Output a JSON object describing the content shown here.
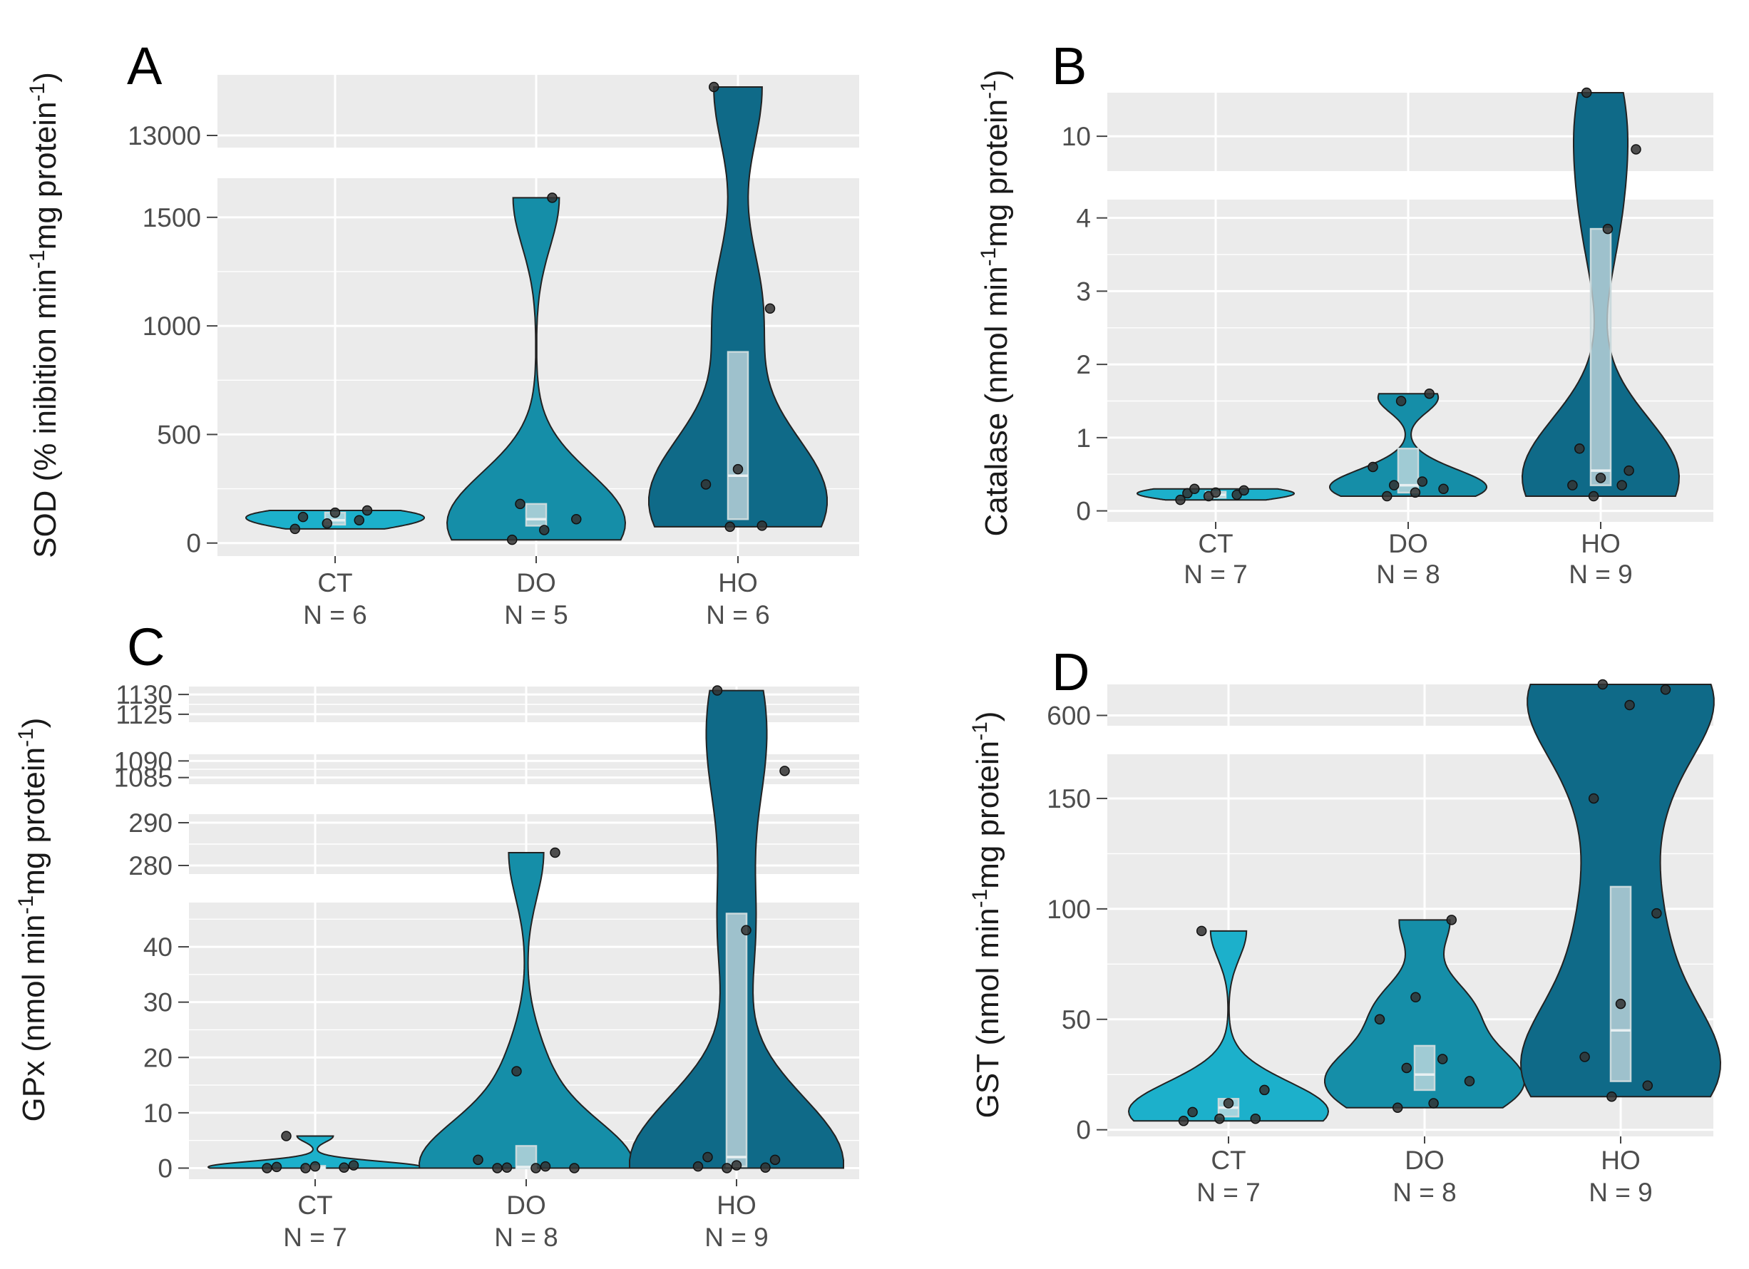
{
  "colors": {
    "panel_bg": "#ebebeb",
    "violin_ct": "#1cb0cb",
    "violin_do": "#158ea8",
    "violin_ho": "#0f6a88"
  },
  "chart_data": [
    {
      "panel": "A",
      "type": "violin",
      "ylabel_main": "SOD (% inibition min",
      "ylabel_mid": "mg protein",
      "ylabel_close": ")",
      "ylabel_sup": "-1",
      "categories": [
        "CT",
        "DO",
        "HO"
      ],
      "counts": [
        "N = 6",
        "N = 5",
        "N = 6"
      ],
      "axis_breaks": [
        {
          "ylim": [
            -60,
            1680
          ],
          "ticks": [
            0,
            500,
            1000,
            1500
          ],
          "tick_labels": [
            "0",
            "500",
            "1000",
            "1500"
          ]
        },
        {
          "ylim": [
            12990,
            13050
          ],
          "ticks": [
            13000
          ],
          "tick_labels": [
            "13000"
          ]
        }
      ],
      "groups": [
        {
          "name": "CT",
          "points": [
            65,
            90,
            105,
            120,
            140,
            150
          ],
          "box": [
            85,
            105,
            140
          ]
        },
        {
          "name": "DO",
          "points": [
            15,
            60,
            110,
            180,
            1590
          ],
          "box": [
            80,
            110,
            180
          ]
        },
        {
          "name": "HO",
          "points": [
            75,
            80,
            270,
            340,
            1080,
            13040
          ],
          "box": [
            110,
            310,
            880
          ]
        }
      ]
    },
    {
      "panel": "B",
      "type": "violin",
      "ylabel_main": "Catalase (nmol min",
      "ylabel_mid": "mg protein",
      "ylabel_close": ")",
      "ylabel_sup": "-1",
      "categories": [
        "CT",
        "DO",
        "HO"
      ],
      "counts": [
        "N = 7",
        "N = 8",
        "N = 9"
      ],
      "axis_breaks": [
        {
          "ylim": [
            -0.15,
            4.25
          ],
          "ticks": [
            0,
            1,
            2,
            3,
            4
          ],
          "tick_labels": [
            "0",
            "1",
            "2",
            "3",
            "4"
          ]
        },
        {
          "ylim": [
            9.6,
            10.5
          ],
          "ticks": [
            10
          ],
          "tick_labels": [
            "10"
          ]
        }
      ],
      "groups": [
        {
          "name": "CT",
          "points": [
            0.15,
            0.2,
            0.22,
            0.24,
            0.25,
            0.28,
            0.3
          ],
          "box": [
            0.18,
            0.22,
            0.26
          ]
        },
        {
          "name": "DO",
          "points": [
            0.2,
            0.25,
            0.3,
            0.35,
            0.4,
            0.6,
            1.5,
            1.6
          ],
          "box": [
            0.25,
            0.35,
            0.85
          ]
        },
        {
          "name": "HO",
          "points": [
            0.2,
            0.35,
            0.35,
            0.45,
            0.55,
            0.85,
            3.85,
            9.85,
            10.5
          ],
          "box": [
            0.35,
            0.55,
            3.85
          ]
        }
      ]
    },
    {
      "panel": "C",
      "type": "violin",
      "ylabel_main": "GPx (nmol min",
      "ylabel_mid": "mg protein",
      "ylabel_close": ")",
      "ylabel_sup": "-1",
      "categories": [
        "CT",
        "DO",
        "HO"
      ],
      "counts": [
        "N = 7",
        "N = 8",
        "N = 9"
      ],
      "axis_breaks": [
        {
          "ylim": [
            -2,
            48
          ],
          "ticks": [
            0,
            10,
            20,
            30,
            40
          ],
          "tick_labels": [
            "0",
            "10",
            "20",
            "30",
            "40"
          ]
        },
        {
          "ylim": [
            278,
            292
          ],
          "ticks": [
            280,
            290
          ],
          "tick_labels": [
            "280",
            "290"
          ]
        },
        {
          "ylim": [
            1083,
            1092
          ],
          "ticks": [
            1085,
            1090
          ],
          "tick_labels": [
            "1085",
            "1090"
          ]
        },
        {
          "ylim": [
            1123,
            1132
          ],
          "ticks": [
            1125,
            1130
          ],
          "tick_labels": [
            "1125",
            "1130"
          ]
        }
      ],
      "groups": [
        {
          "name": "CT",
          "points": [
            0,
            0,
            0.1,
            0.2,
            0.3,
            0.5,
            5.8
          ],
          "box": [
            0,
            0.1,
            0.4
          ]
        },
        {
          "name": "DO",
          "points": [
            0,
            0,
            0,
            0.1,
            0.3,
            1.5,
            17.5,
            283
          ],
          "box": [
            0,
            0.2,
            4
          ]
        },
        {
          "name": "HO",
          "points": [
            0,
            0.1,
            0.3,
            0.5,
            1.5,
            2,
            43,
            1087,
            1131
          ],
          "box": [
            0.3,
            2,
            46
          ]
        }
      ]
    },
    {
      "panel": "D",
      "type": "violin",
      "ylabel_main": "GST (nmol min",
      "ylabel_mid": "mg protein",
      "ylabel_close": ")",
      "ylabel_sup": "-1",
      "categories": [
        "CT",
        "DO",
        "HO"
      ],
      "counts": [
        "N = 7",
        "N = 8",
        "N = 9"
      ],
      "axis_breaks": [
        {
          "ylim": [
            -3,
            170
          ],
          "ticks": [
            0,
            50,
            100,
            150
          ],
          "tick_labels": [
            "0",
            "50",
            "100",
            "150"
          ]
        },
        {
          "ylim": [
            590,
            630
          ],
          "ticks": [
            600
          ],
          "tick_labels": [
            "600"
          ]
        }
      ],
      "groups": [
        {
          "name": "CT",
          "points": [
            4,
            5,
            5,
            8,
            12,
            18,
            90
          ],
          "box": [
            6,
            10,
            14
          ]
        },
        {
          "name": "DO",
          "points": [
            10,
            12,
            22,
            28,
            32,
            50,
            60,
            95
          ],
          "box": [
            18,
            25,
            38
          ]
        },
        {
          "name": "HO",
          "points": [
            15,
            20,
            33,
            57,
            98,
            150,
            610,
            625,
            630
          ],
          "box": [
            22,
            45,
            110
          ]
        }
      ]
    }
  ]
}
